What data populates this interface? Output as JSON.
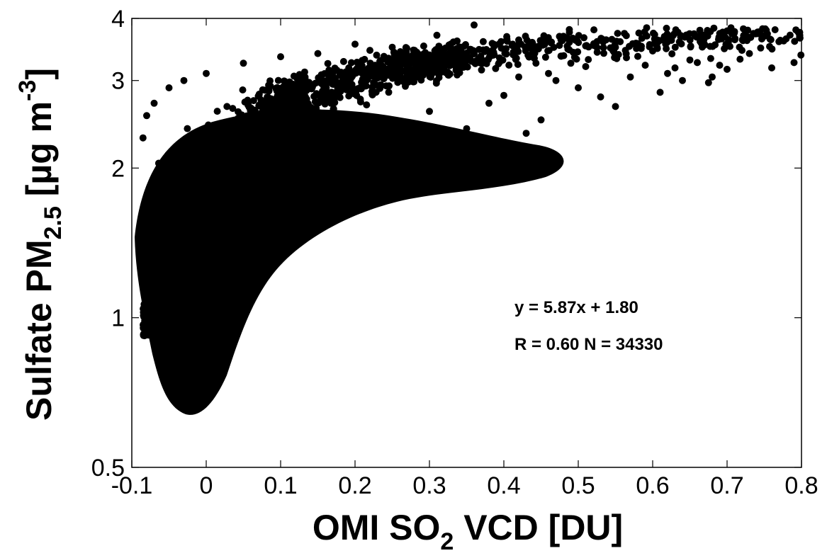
{
  "chart_data": {
    "type": "scatter",
    "xlabel": {
      "main": "OMI SO",
      "sub": "2",
      "rest": " VCD [DU]"
    },
    "ylabel": {
      "main": "Sulfate PM",
      "sub": "2.5",
      "rest": " [µg m",
      "sup": "-3",
      "end": "]"
    },
    "xlim": [
      -0.1,
      0.8
    ],
    "ylim": [
      0.5,
      4
    ],
    "x_ticks": [
      "-0.1",
      "0",
      "0.1",
      "0.2",
      "0.3",
      "0.4",
      "0.5",
      "0.6",
      "0.7",
      "0.8"
    ],
    "y_ticks": [
      "0.5",
      "1",
      "2",
      "3",
      "4"
    ],
    "y_axis_scale": "log",
    "marker_color": "#000000",
    "annotations": {
      "fit": "y = 5.87x + 1.80",
      "stats": "R = 0.60  N = 34330"
    },
    "series": [
      {
        "points": [
          [
            0.36,
            3.88
          ],
          [
            0.31,
            3.7
          ],
          [
            0.485,
            3.66
          ],
          [
            0.625,
            3.64
          ],
          [
            0.67,
            3.54
          ],
          [
            0.79,
            3.26
          ],
          [
            0.76,
            3.18
          ],
          [
            0.72,
            3.45
          ],
          [
            0.73,
            3.4
          ],
          [
            0.42,
            3.62
          ],
          [
            0.2,
            3.55
          ],
          [
            0.25,
            3.5
          ],
          [
            0.55,
            3.5
          ],
          [
            0.58,
            3.56
          ],
          [
            0.6,
            3.44
          ],
          [
            0.65,
            3.3
          ],
          [
            0.69,
            3.22
          ],
          [
            0.7,
            3.16
          ],
          [
            0.68,
            3.05
          ],
          [
            0.62,
            3.1
          ],
          [
            0.675,
            2.97
          ],
          [
            0.61,
            2.84
          ],
          [
            0.55,
            2.66
          ],
          [
            0.53,
            2.78
          ],
          [
            0.45,
            2.5
          ],
          [
            0.43,
            2.35
          ],
          [
            0.5,
            2.9
          ],
          [
            0.47,
            3.0
          ],
          [
            0.38,
            2.7
          ],
          [
            0.4,
            2.8
          ],
          [
            0.3,
            2.6
          ],
          [
            0.35,
            2.4
          ],
          [
            0.25,
            2.3
          ],
          [
            0.21,
            2.15
          ],
          [
            0.18,
            2.05
          ],
          [
            0.15,
            1.85
          ],
          [
            0.12,
            1.7
          ],
          [
            0.1,
            1.55
          ],
          [
            0.08,
            1.4
          ],
          [
            0.06,
            1.3
          ],
          [
            0.04,
            1.15
          ],
          [
            0.02,
            1.05
          ],
          [
            0.0,
            0.97
          ],
          [
            -0.01,
            0.93
          ],
          [
            -0.02,
            0.95
          ],
          [
            -0.03,
            1.05
          ],
          [
            -0.05,
            1.2
          ],
          [
            -0.07,
            1.45
          ],
          [
            -0.085,
            2.3
          ],
          [
            -0.08,
            2.55
          ],
          [
            -0.07,
            2.7
          ],
          [
            -0.05,
            2.9
          ],
          [
            -0.03,
            3.0
          ],
          [
            0.0,
            3.1
          ],
          [
            0.05,
            3.25
          ],
          [
            0.1,
            3.35
          ],
          [
            0.15,
            3.4
          ],
          [
            0.22,
            3.45
          ],
          [
            0.28,
            3.45
          ],
          [
            0.33,
            3.42
          ],
          [
            0.26,
            3.1
          ],
          [
            0.32,
            3.2
          ],
          [
            0.37,
            3.15
          ],
          [
            0.42,
            3.05
          ],
          [
            0.46,
            3.1
          ],
          [
            0.49,
            3.25
          ],
          [
            0.51,
            3.2
          ],
          [
            0.57,
            3.05
          ],
          [
            0.59,
            3.22
          ],
          [
            0.63,
            3.18
          ],
          [
            0.66,
            3.26
          ],
          [
            0.64,
            3.0
          ]
        ]
      }
    ]
  }
}
